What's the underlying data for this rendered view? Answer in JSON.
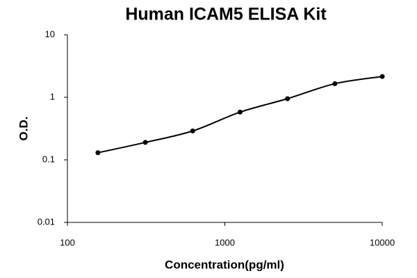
{
  "chart_data": {
    "type": "scatter",
    "title": "Human ICAM5 ELISA Kit",
    "x_label": "Concentration(pg/ml)",
    "y_label": "O.D.",
    "x": [
      156.25,
      312.5,
      625,
      1250,
      2500,
      5000,
      10000
    ],
    "values": [
      0.13,
      0.19,
      0.29,
      0.58,
      0.95,
      1.65,
      2.15
    ],
    "color": "#000000",
    "x_log": true,
    "y_log": true,
    "fit_curve": true,
    "xlim": [
      100,
      10000
    ],
    "xticks": [
      100,
      1000,
      10000
    ],
    "ylim": [
      0.01,
      10
    ],
    "yticks": [
      0.01,
      0.1,
      1,
      10
    ]
  }
}
